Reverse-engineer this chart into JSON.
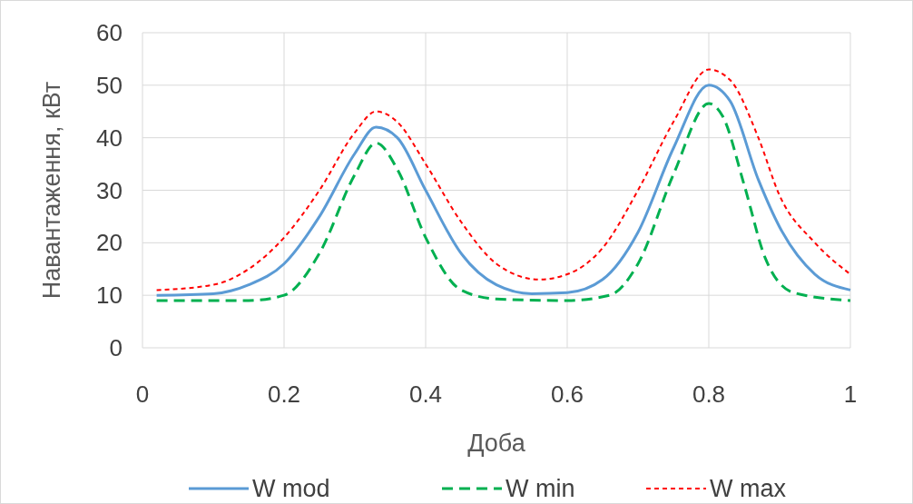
{
  "chart_data": {
    "type": "line",
    "xlabel": "Доба",
    "ylabel": "Навантаження, кВт",
    "xlim": [
      0,
      1
    ],
    "xticks": [
      0,
      {
        "value": 0.2,
        "label": "0.2"
      },
      {
        "value": 0.4,
        "label": "0.4"
      },
      {
        "value": 0.6,
        "label": "0.6"
      },
      {
        "value": 0.8,
        "label": "0.8"
      },
      1
    ],
    "ylim": [
      0,
      60
    ],
    "yticks": [
      0,
      10,
      20,
      30,
      40,
      50,
      60
    ],
    "grid": true,
    "legend": "bottom",
    "x": [
      0.02,
      0.1,
      0.15,
      0.2,
      0.25,
      0.3,
      0.33,
      0.36,
      0.4,
      0.45,
      0.5,
      0.55,
      0.6,
      0.65,
      0.7,
      0.75,
      0.8,
      0.83,
      0.87,
      0.9,
      0.95,
      1
    ],
    "series": [
      {
        "name": "W mod",
        "color": "#5b9bd5",
        "line_style": "solid",
        "values": [
          10,
          10.3,
          12,
          16,
          25,
          37,
          42,
          40,
          30,
          18,
          12,
          10.3,
          10.5,
          13,
          22,
          38,
          50,
          47,
          32,
          23,
          14,
          11
        ]
      },
      {
        "name": "W min",
        "color": "#00b050",
        "line_style": "dashed",
        "x": [
          0.02,
          0.15,
          0.2,
          0.25,
          0.3,
          0.33,
          0.36,
          0.4,
          0.45,
          0.5,
          0.6,
          0.66,
          0.7,
          0.75,
          0.8,
          0.82,
          0.85,
          0.88,
          0.92,
          1
        ],
        "values": [
          9,
          9,
          10,
          18,
          33,
          39,
          34,
          21,
          11,
          9.3,
          9,
          10,
          16,
          33,
          46.5,
          44,
          31,
          17,
          10.5,
          9
        ]
      },
      {
        "name": "W max",
        "color": "#ff0000",
        "line_style": "dotted",
        "x": [
          0.02,
          0.1,
          0.15,
          0.2,
          0.25,
          0.3,
          0.33,
          0.36,
          0.4,
          0.45,
          0.5,
          0.56,
          0.6,
          0.65,
          0.7,
          0.75,
          0.8,
          0.83,
          0.87,
          0.9,
          0.95,
          1
        ],
        "values": [
          11,
          12,
          15,
          21,
          30,
          41,
          45,
          43,
          35,
          24,
          16,
          13,
          14,
          19,
          30,
          43,
          53,
          51,
          40,
          29,
          20,
          14
        ]
      }
    ]
  }
}
